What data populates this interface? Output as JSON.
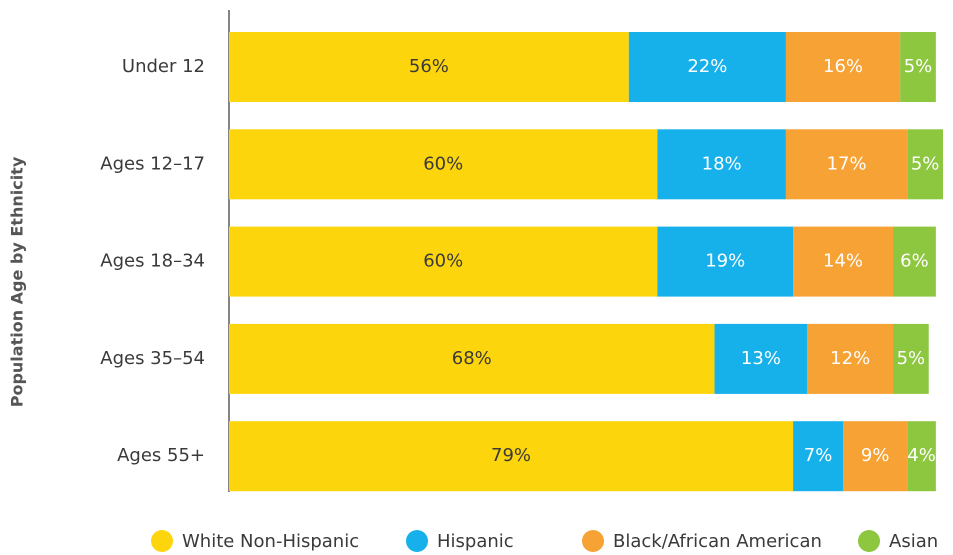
{
  "chart_data": {
    "type": "stacked-bar-horizontal",
    "y_axis_title": "Population Age by Ethnicity",
    "categories": [
      "Under 12",
      "Ages 12–17",
      "Ages 18–34",
      "Ages 35–54",
      "Ages 55+"
    ],
    "xlim": [
      0,
      100
    ],
    "series": [
      {
        "name": "White Non-Hispanic",
        "color": "#fdd50d",
        "values": [
          56,
          60,
          60,
          68,
          79
        ],
        "value_labels": [
          "56%",
          "60%",
          "60%",
          "68%",
          "79%"
        ]
      },
      {
        "name": "Hispanic",
        "color": "#16b1ea",
        "values": [
          22,
          18,
          19,
          13,
          7
        ],
        "value_labels": [
          "22%",
          "18%",
          "19%",
          "13%",
          "7%"
        ]
      },
      {
        "name": "Black/African American",
        "color": "#f7a234",
        "values": [
          16,
          17,
          14,
          12,
          9
        ],
        "value_labels": [
          "16%",
          "17%",
          "14%",
          "12%",
          "9%"
        ]
      },
      {
        "name": "Asian",
        "color": "#8dc63f",
        "values": [
          5,
          5,
          6,
          5,
          4
        ],
        "value_labels": [
          "5%",
          "5%",
          "6%",
          "5%",
          "4%"
        ]
      }
    ]
  }
}
